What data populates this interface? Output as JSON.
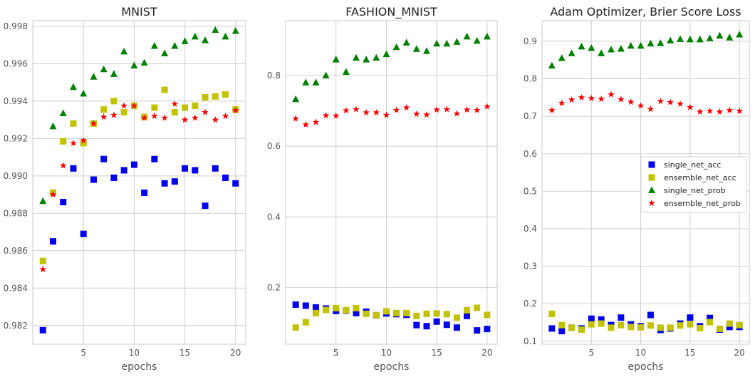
{
  "chart_data": [
    {
      "type": "scatter",
      "title": "MNIST",
      "xlabel": "epochs",
      "ylabel": "",
      "xlim": [
        0,
        21
      ],
      "ylim": [
        0.981,
        0.9983
      ],
      "xticks": [
        5,
        10,
        15,
        20
      ],
      "yticks": [
        0.982,
        0.984,
        0.986,
        0.988,
        0.99,
        0.992,
        0.994,
        0.996,
        0.998
      ],
      "ytick_decimals": 3,
      "grid": true,
      "legend": false,
      "series": [
        {
          "key": "single_net_acc",
          "color": "#0000ee",
          "marker": "square",
          "x": [
            1,
            2,
            3,
            4,
            5,
            6,
            7,
            8,
            9,
            10,
            11,
            12,
            13,
            14,
            15,
            16,
            17,
            18,
            19,
            20
          ],
          "y": [
            0.98175,
            0.9865,
            0.9886,
            0.9904,
            0.9869,
            0.9898,
            0.9909,
            0.9899,
            0.9903,
            0.9906,
            0.9891,
            0.9909,
            0.9896,
            0.9897,
            0.9904,
            0.9903,
            0.9884,
            0.9904,
            0.9899,
            0.9896
          ]
        },
        {
          "key": "ensemble_net_acc",
          "color": "#c2c200",
          "marker": "square",
          "x": [
            1,
            2,
            3,
            4,
            5,
            6,
            7,
            8,
            9,
            10,
            11,
            12,
            13,
            14,
            15,
            16,
            17,
            18,
            19,
            20
          ],
          "y": [
            0.98545,
            0.9891,
            0.99185,
            0.9928,
            0.99175,
            0.9928,
            0.99355,
            0.994,
            0.9934,
            0.99375,
            0.99315,
            0.99365,
            0.9946,
            0.9934,
            0.99365,
            0.99375,
            0.9942,
            0.99425,
            0.99435,
            0.99355
          ]
        },
        {
          "key": "single_net_prob",
          "color": "#008000",
          "marker": "triangle",
          "x": [
            1,
            2,
            3,
            4,
            5,
            6,
            7,
            8,
            9,
            10,
            11,
            12,
            13,
            14,
            15,
            16,
            17,
            18,
            19,
            20
          ],
          "y": [
            0.98865,
            0.99265,
            0.99335,
            0.99475,
            0.9944,
            0.9953,
            0.9957,
            0.99545,
            0.99665,
            0.9959,
            0.99605,
            0.99695,
            0.99655,
            0.99695,
            0.9972,
            0.99745,
            0.99725,
            0.9978,
            0.99745,
            0.99775
          ]
        },
        {
          "key": "ensemble_net_prob",
          "color": "#ff0000",
          "marker": "star",
          "x": [
            1,
            2,
            3,
            4,
            5,
            6,
            7,
            8,
            9,
            10,
            11,
            12,
            13,
            14,
            15,
            16,
            17,
            18,
            19,
            20
          ],
          "y": [
            0.985,
            0.989,
            0.99055,
            0.99175,
            0.9919,
            0.9928,
            0.99315,
            0.99325,
            0.99375,
            0.99375,
            0.9931,
            0.9932,
            0.9931,
            0.99385,
            0.993,
            0.9931,
            0.9934,
            0.993,
            0.9932,
            0.9935
          ]
        }
      ]
    },
    {
      "type": "scatter",
      "title": "FASHION_MNIST",
      "xlabel": "epochs",
      "ylabel": "",
      "xlim": [
        0,
        21
      ],
      "ylim": [
        0.04,
        0.955
      ],
      "xticks": [
        5,
        10,
        15,
        20
      ],
      "yticks": [
        0.2,
        0.4,
        0.6,
        0.8
      ],
      "ytick_decimals": 1,
      "grid": true,
      "legend": false,
      "series": [
        {
          "key": "single_net_acc",
          "color": "#0000ee",
          "marker": "square",
          "x": [
            1,
            2,
            3,
            4,
            5,
            6,
            7,
            8,
            9,
            10,
            11,
            12,
            13,
            14,
            15,
            16,
            17,
            18,
            19,
            20
          ],
          "y": [
            0.152,
            0.149,
            0.144,
            0.141,
            0.134,
            0.135,
            0.128,
            0.132,
            0.122,
            0.127,
            0.125,
            0.123,
            0.094,
            0.091,
            0.104,
            0.095,
            0.087,
            0.12,
            0.079,
            0.083
          ]
        },
        {
          "key": "ensemble_net_acc",
          "color": "#c2c200",
          "marker": "square",
          "x": [
            1,
            2,
            3,
            4,
            5,
            6,
            7,
            8,
            9,
            10,
            11,
            12,
            13,
            14,
            15,
            16,
            17,
            18,
            19,
            20
          ],
          "y": [
            0.087,
            0.102,
            0.128,
            0.137,
            0.142,
            0.136,
            0.142,
            0.126,
            0.122,
            0.133,
            0.128,
            0.128,
            0.12,
            0.126,
            0.127,
            0.125,
            0.115,
            0.136,
            0.143,
            0.123
          ]
        },
        {
          "key": "single_net_prob",
          "color": "#008000",
          "marker": "triangle",
          "x": [
            1,
            2,
            3,
            4,
            5,
            6,
            7,
            8,
            9,
            10,
            11,
            12,
            13,
            14,
            15,
            16,
            17,
            18,
            19,
            20
          ],
          "y": [
            0.733,
            0.78,
            0.78,
            0.8,
            0.845,
            0.81,
            0.85,
            0.845,
            0.85,
            0.86,
            0.88,
            0.893,
            0.875,
            0.869,
            0.89,
            0.89,
            0.895,
            0.91,
            0.898,
            0.91
          ]
        },
        {
          "key": "ensemble_net_prob",
          "color": "#ff0000",
          "marker": "star",
          "x": [
            1,
            2,
            3,
            4,
            5,
            6,
            7,
            8,
            9,
            10,
            11,
            12,
            13,
            14,
            15,
            16,
            17,
            18,
            19,
            20
          ],
          "y": [
            0.678,
            0.661,
            0.668,
            0.687,
            0.686,
            0.701,
            0.704,
            0.695,
            0.695,
            0.688,
            0.702,
            0.709,
            0.691,
            0.689,
            0.703,
            0.704,
            0.692,
            0.703,
            0.702,
            0.712
          ]
        }
      ]
    },
    {
      "type": "scatter",
      "title": "Adam Optimizer, Brier Score Loss",
      "xlabel": "epochs",
      "ylabel": "",
      "xlim": [
        0,
        21
      ],
      "ylim": [
        0.092,
        0.955
      ],
      "xticks": [
        5,
        10,
        15,
        20
      ],
      "yticks": [
        0.1,
        0.2,
        0.3,
        0.4,
        0.5,
        0.6,
        0.7,
        0.8,
        0.9
      ],
      "ytick_decimals": 1,
      "grid": true,
      "legend": true,
      "legend_position": "center-right",
      "series": [
        {
          "key": "single_net_acc",
          "name": "single_net_acc",
          "color": "#0000ee",
          "marker": "square",
          "x": [
            1,
            2,
            3,
            4,
            5,
            6,
            7,
            8,
            9,
            10,
            11,
            12,
            13,
            14,
            15,
            16,
            17,
            18,
            19,
            20
          ],
          "y": [
            0.134,
            0.127,
            0.136,
            0.134,
            0.16,
            0.158,
            0.143,
            0.163,
            0.145,
            0.14,
            0.17,
            0.13,
            0.134,
            0.147,
            0.163,
            0.14,
            0.162,
            0.131,
            0.138,
            0.138
          ]
        },
        {
          "key": "ensemble_net_acc",
          "name": "ensemble_net_acc",
          "color": "#c2c200",
          "marker": "square",
          "x": [
            1,
            2,
            3,
            4,
            5,
            6,
            7,
            8,
            9,
            10,
            11,
            12,
            13,
            14,
            15,
            16,
            17,
            18,
            19,
            20
          ],
          "y": [
            0.173,
            0.143,
            0.136,
            0.131,
            0.145,
            0.147,
            0.136,
            0.143,
            0.138,
            0.137,
            0.142,
            0.136,
            0.136,
            0.142,
            0.145,
            0.135,
            0.151,
            0.133,
            0.147,
            0.143
          ]
        },
        {
          "key": "single_net_prob",
          "name": "single_net_prob",
          "color": "#008000",
          "marker": "triangle",
          "x": [
            1,
            2,
            3,
            4,
            5,
            6,
            7,
            8,
            9,
            10,
            11,
            12,
            13,
            14,
            15,
            16,
            17,
            18,
            19,
            20
          ],
          "y": [
            0.835,
            0.855,
            0.868,
            0.886,
            0.882,
            0.868,
            0.878,
            0.88,
            0.888,
            0.888,
            0.894,
            0.895,
            0.902,
            0.906,
            0.905,
            0.905,
            0.908,
            0.915,
            0.91,
            0.918
          ]
        },
        {
          "key": "ensemble_net_prob",
          "name": "ensemble_net_prob",
          "color": "#ff0000",
          "marker": "star",
          "x": [
            1,
            2,
            3,
            4,
            5,
            6,
            7,
            8,
            9,
            10,
            11,
            12,
            13,
            14,
            15,
            16,
            17,
            18,
            19,
            20
          ],
          "y": [
            0.716,
            0.735,
            0.744,
            0.75,
            0.748,
            0.746,
            0.758,
            0.745,
            0.738,
            0.728,
            0.719,
            0.74,
            0.737,
            0.733,
            0.724,
            0.712,
            0.714,
            0.712,
            0.716,
            0.714
          ]
        }
      ]
    }
  ]
}
